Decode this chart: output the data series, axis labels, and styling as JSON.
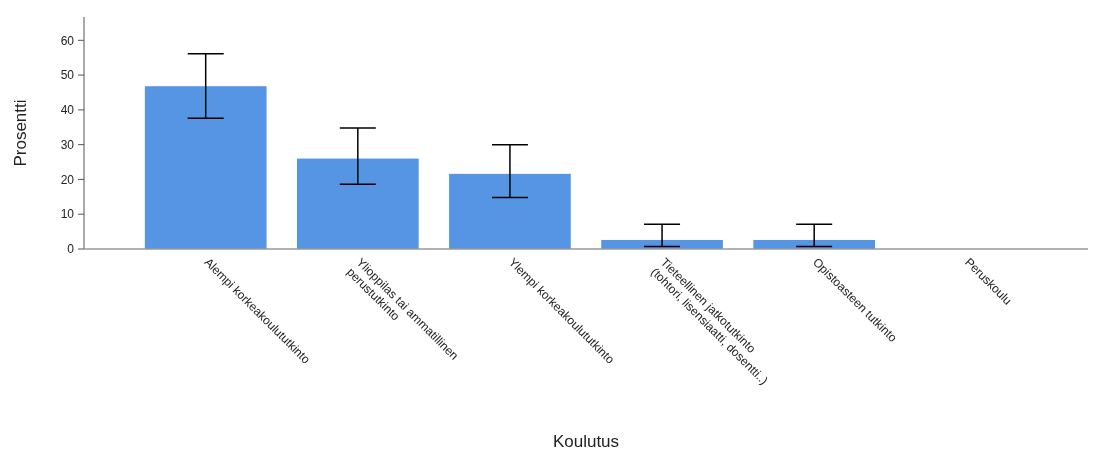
{
  "chart_data": {
    "type": "bar",
    "xlabel": "Koulutus",
    "ylabel": "Prosentti",
    "categories": [
      "Alempi korkeakoulututkinto",
      "Ylioppilas tai ammatillinen perustutkinto",
      "Ylempi korkeakoulututkinto",
      "Tieteellinen jatkotutkinto (tohtori, lisensiaatti, dosentti..)",
      "Opistoasteen tutkinto",
      "Peruskoulu"
    ],
    "values": [
      46.8,
      26,
      21.6,
      2.6,
      2.6,
      0
    ],
    "errors": [
      [
        37.6,
        56.1
      ],
      [
        18.6,
        34.8
      ],
      [
        14.8,
        30
      ],
      [
        0.7,
        7.1
      ],
      [
        0.7,
        7.1
      ],
      null
    ],
    "color": "#5595e3",
    "ylim": [
      0,
      66.7
    ],
    "yticks": [
      0,
      10,
      20,
      30,
      40,
      50,
      60
    ]
  }
}
